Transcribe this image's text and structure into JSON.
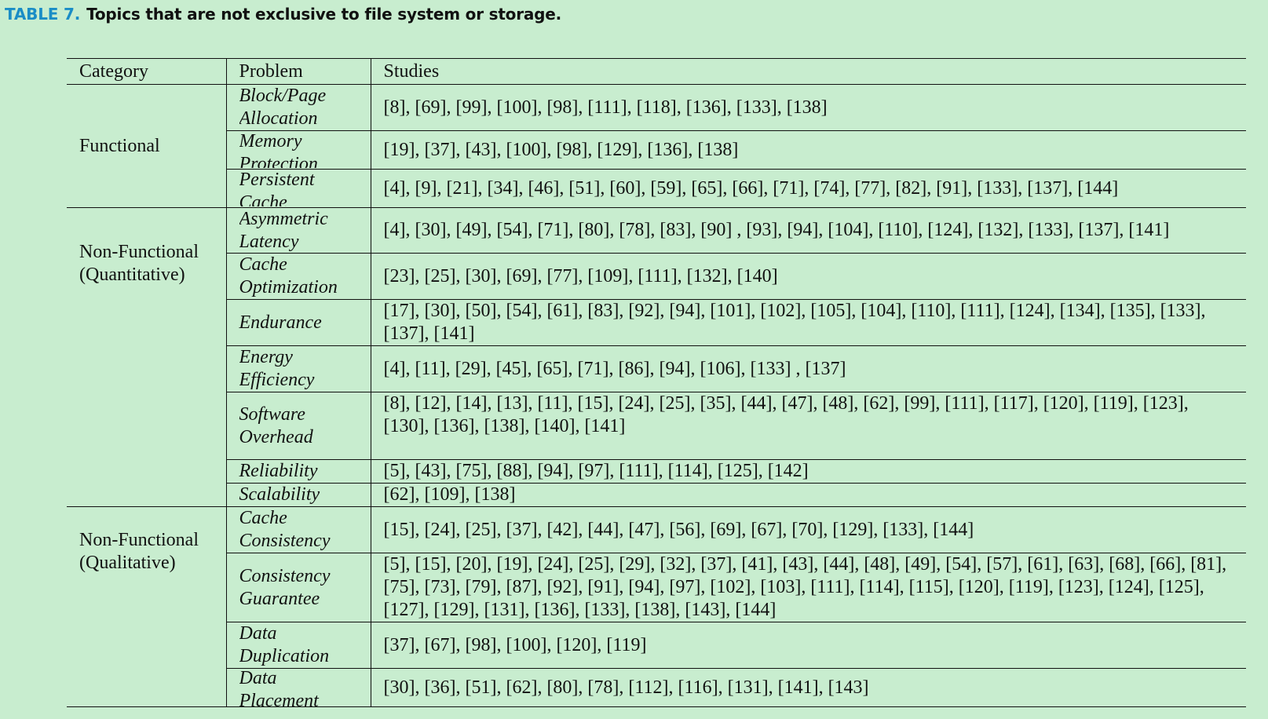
{
  "caption": {
    "label": "TABLE 7.",
    "title": "Topics that are not exclusive to file system or storage."
  },
  "table": {
    "headers": [
      "Category",
      "Problem",
      "Studies"
    ],
    "groups": [
      {
        "category": [
          "Functional"
        ],
        "rows": [
          {
            "problem": [
              "Block/Page",
              "Allocation"
            ],
            "studies": "[8], [69], [99], [100], [98], [111], [118], [136], [133], [138]"
          },
          {
            "problem": [
              "Memory",
              "Protection"
            ],
            "studies": "[19], [37], [43], [100], [98], [129], [136], [138]"
          },
          {
            "problem": [
              "Persistent",
              "Cache"
            ],
            "studies": "[4], [9], [21], [34], [46], [51], [60], [59], [65], [66], [71], [74], [77], [82], [91], [133], [137], [144]"
          }
        ]
      },
      {
        "category": [
          "Non-Functional",
          "(Quantitative)"
        ],
        "rows": [
          {
            "problem": [
              "Asymmetric",
              "Latency"
            ],
            "studies": "[4], [30], [49], [54], [71], [80], [78], [83], [90] , [93], [94], [104], [110], [124], [132], [133], [137], [141]"
          },
          {
            "problem": [
              "Cache",
              "Optimization"
            ],
            "studies": "[23], [25], [30], [69], [77], [109], [111], [132], [140]"
          },
          {
            "problem": [
              "Endurance"
            ],
            "studies": "[17], [30], [50], [54], [61], [83], [92], [94], [101], [102], [105], [104], [110], [111], [124], [134], [135], [133], [137], [141]"
          },
          {
            "problem": [
              "Energy",
              "Efficiency"
            ],
            "studies": "[4], [11], [29], [45], [65], [71], [86], [94], [106], [133] , [137]"
          },
          {
            "problem": [
              "Software",
              "Overhead"
            ],
            "studies": "[8], [12], [14], [13], [11], [15], [24], [25], [35], [44], [47], [48], [62], [99], [111], [117], [120], [119], [123], [130], [136], [138], [140], [141]"
          },
          {
            "problem": [
              "Reliability"
            ],
            "studies": "[5], [43], [75], [88], [94], [97], [111], [114], [125], [142]"
          },
          {
            "problem": [
              "Scalability"
            ],
            "studies": "[62], [109], [138]"
          }
        ]
      },
      {
        "category": [
          "Non-Functional",
          "(Qualitative)"
        ],
        "rows": [
          {
            "problem": [
              "Cache",
              "Consistency"
            ],
            "studies": "[15], [24], [25], [37], [42], [44], [47], [56], [69], [67], [70], [129], [133], [144]"
          },
          {
            "problem": [
              "Consistency",
              "Guarantee"
            ],
            "studies": "[5], [15], [20], [19], [24], [25], [29], [32], [37], [41], [43], [44], [48], [49], [54], [57], [61], [63], [68], [66], [81], [75], [73], [79], [87], [92], [91], [94], [97], [102], [103], [111], [114], [115], [120], [119], [123], [124], [125], [127], [129], [131], [136], [133], [138], [143], [144]"
          },
          {
            "problem": [
              "Data",
              "Duplication"
            ],
            "studies": "[37], [67], [98], [100], [120], [119]"
          },
          {
            "problem": [
              "Data",
              "Placement"
            ],
            "studies": "[30], [36], [51], [62], [80], [78], [112], [116], [131], [141], [143]"
          }
        ]
      }
    ]
  }
}
